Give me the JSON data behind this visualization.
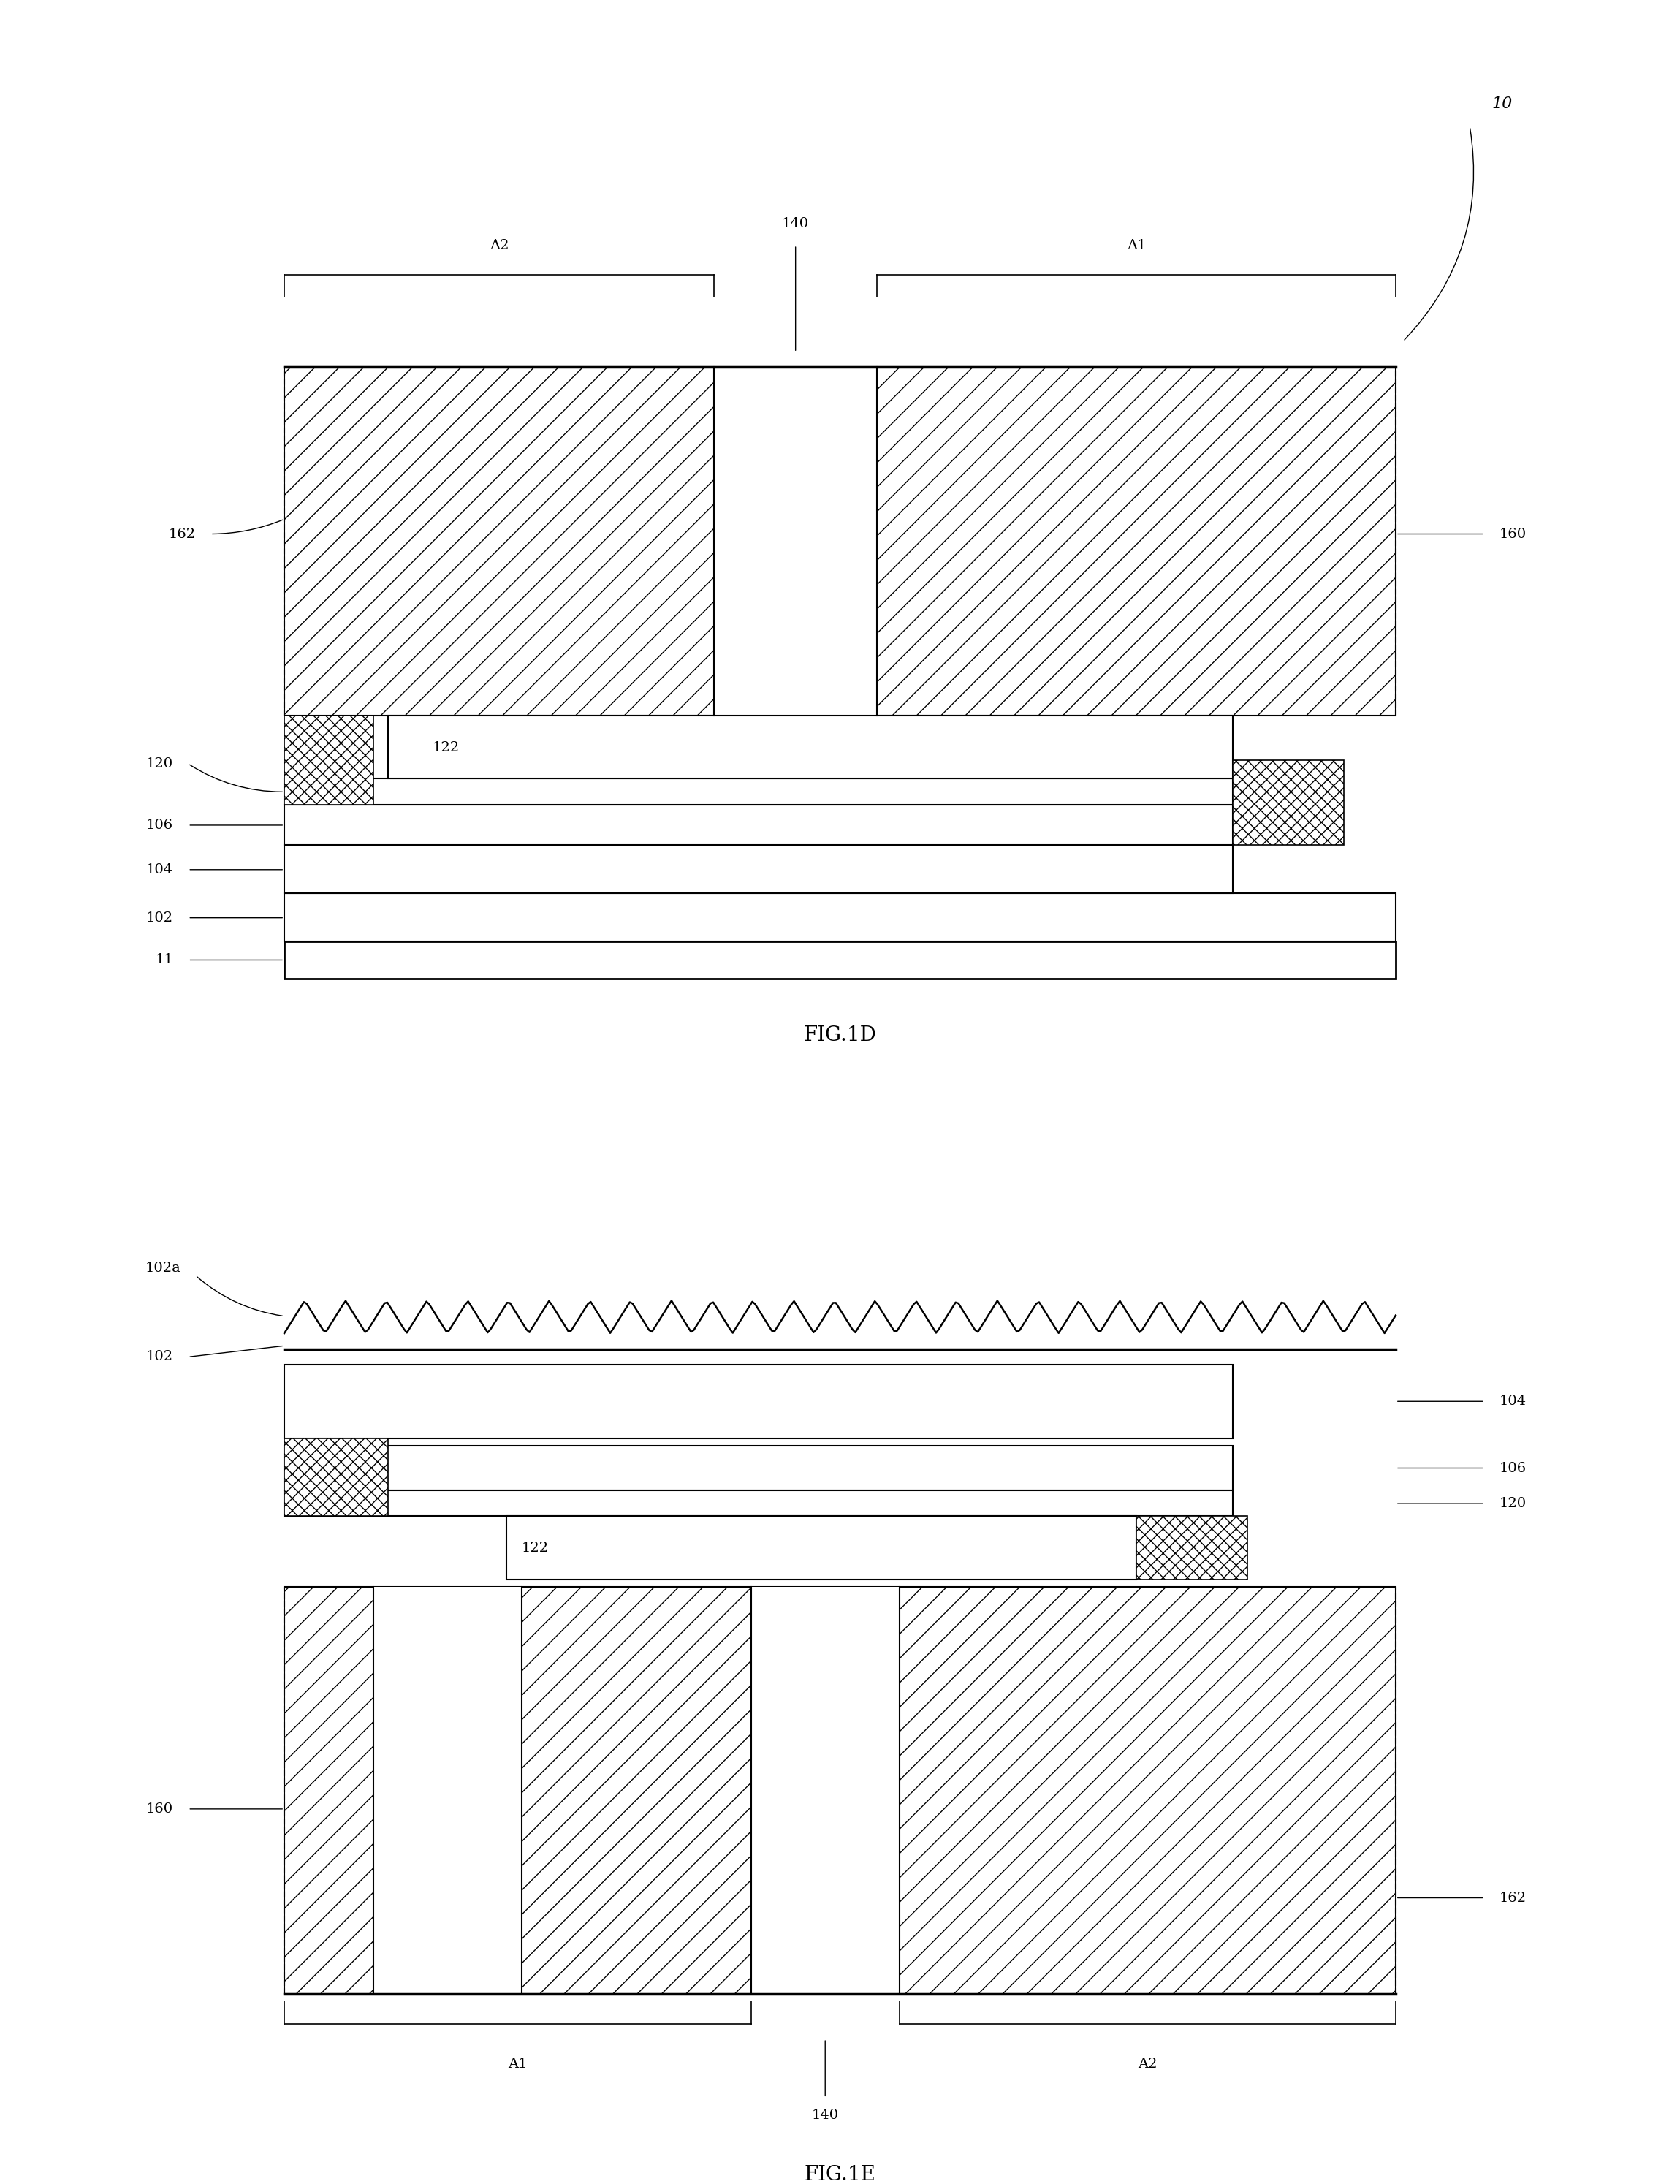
{
  "bg_color": "#ffffff",
  "fig_width": 22.99,
  "fig_height": 29.88,
  "fig1d": {
    "title": "FIG.1D",
    "label_10": "10",
    "label_A1": "A1",
    "label_A2": "A2",
    "label_140": "140",
    "label_160": "160",
    "label_162": "162",
    "label_120": "120",
    "label_122": "122",
    "label_106": "106",
    "label_104": "104",
    "label_102": "102",
    "label_11": "11"
  },
  "fig1e": {
    "title": "FIG.1E",
    "label_A1": "A1",
    "label_A2": "A2",
    "label_140": "140",
    "label_160": "160",
    "label_162": "162",
    "label_120": "120",
    "label_122": "122",
    "label_106": "106",
    "label_104": "104",
    "label_102": "102",
    "label_102a": "102a"
  }
}
